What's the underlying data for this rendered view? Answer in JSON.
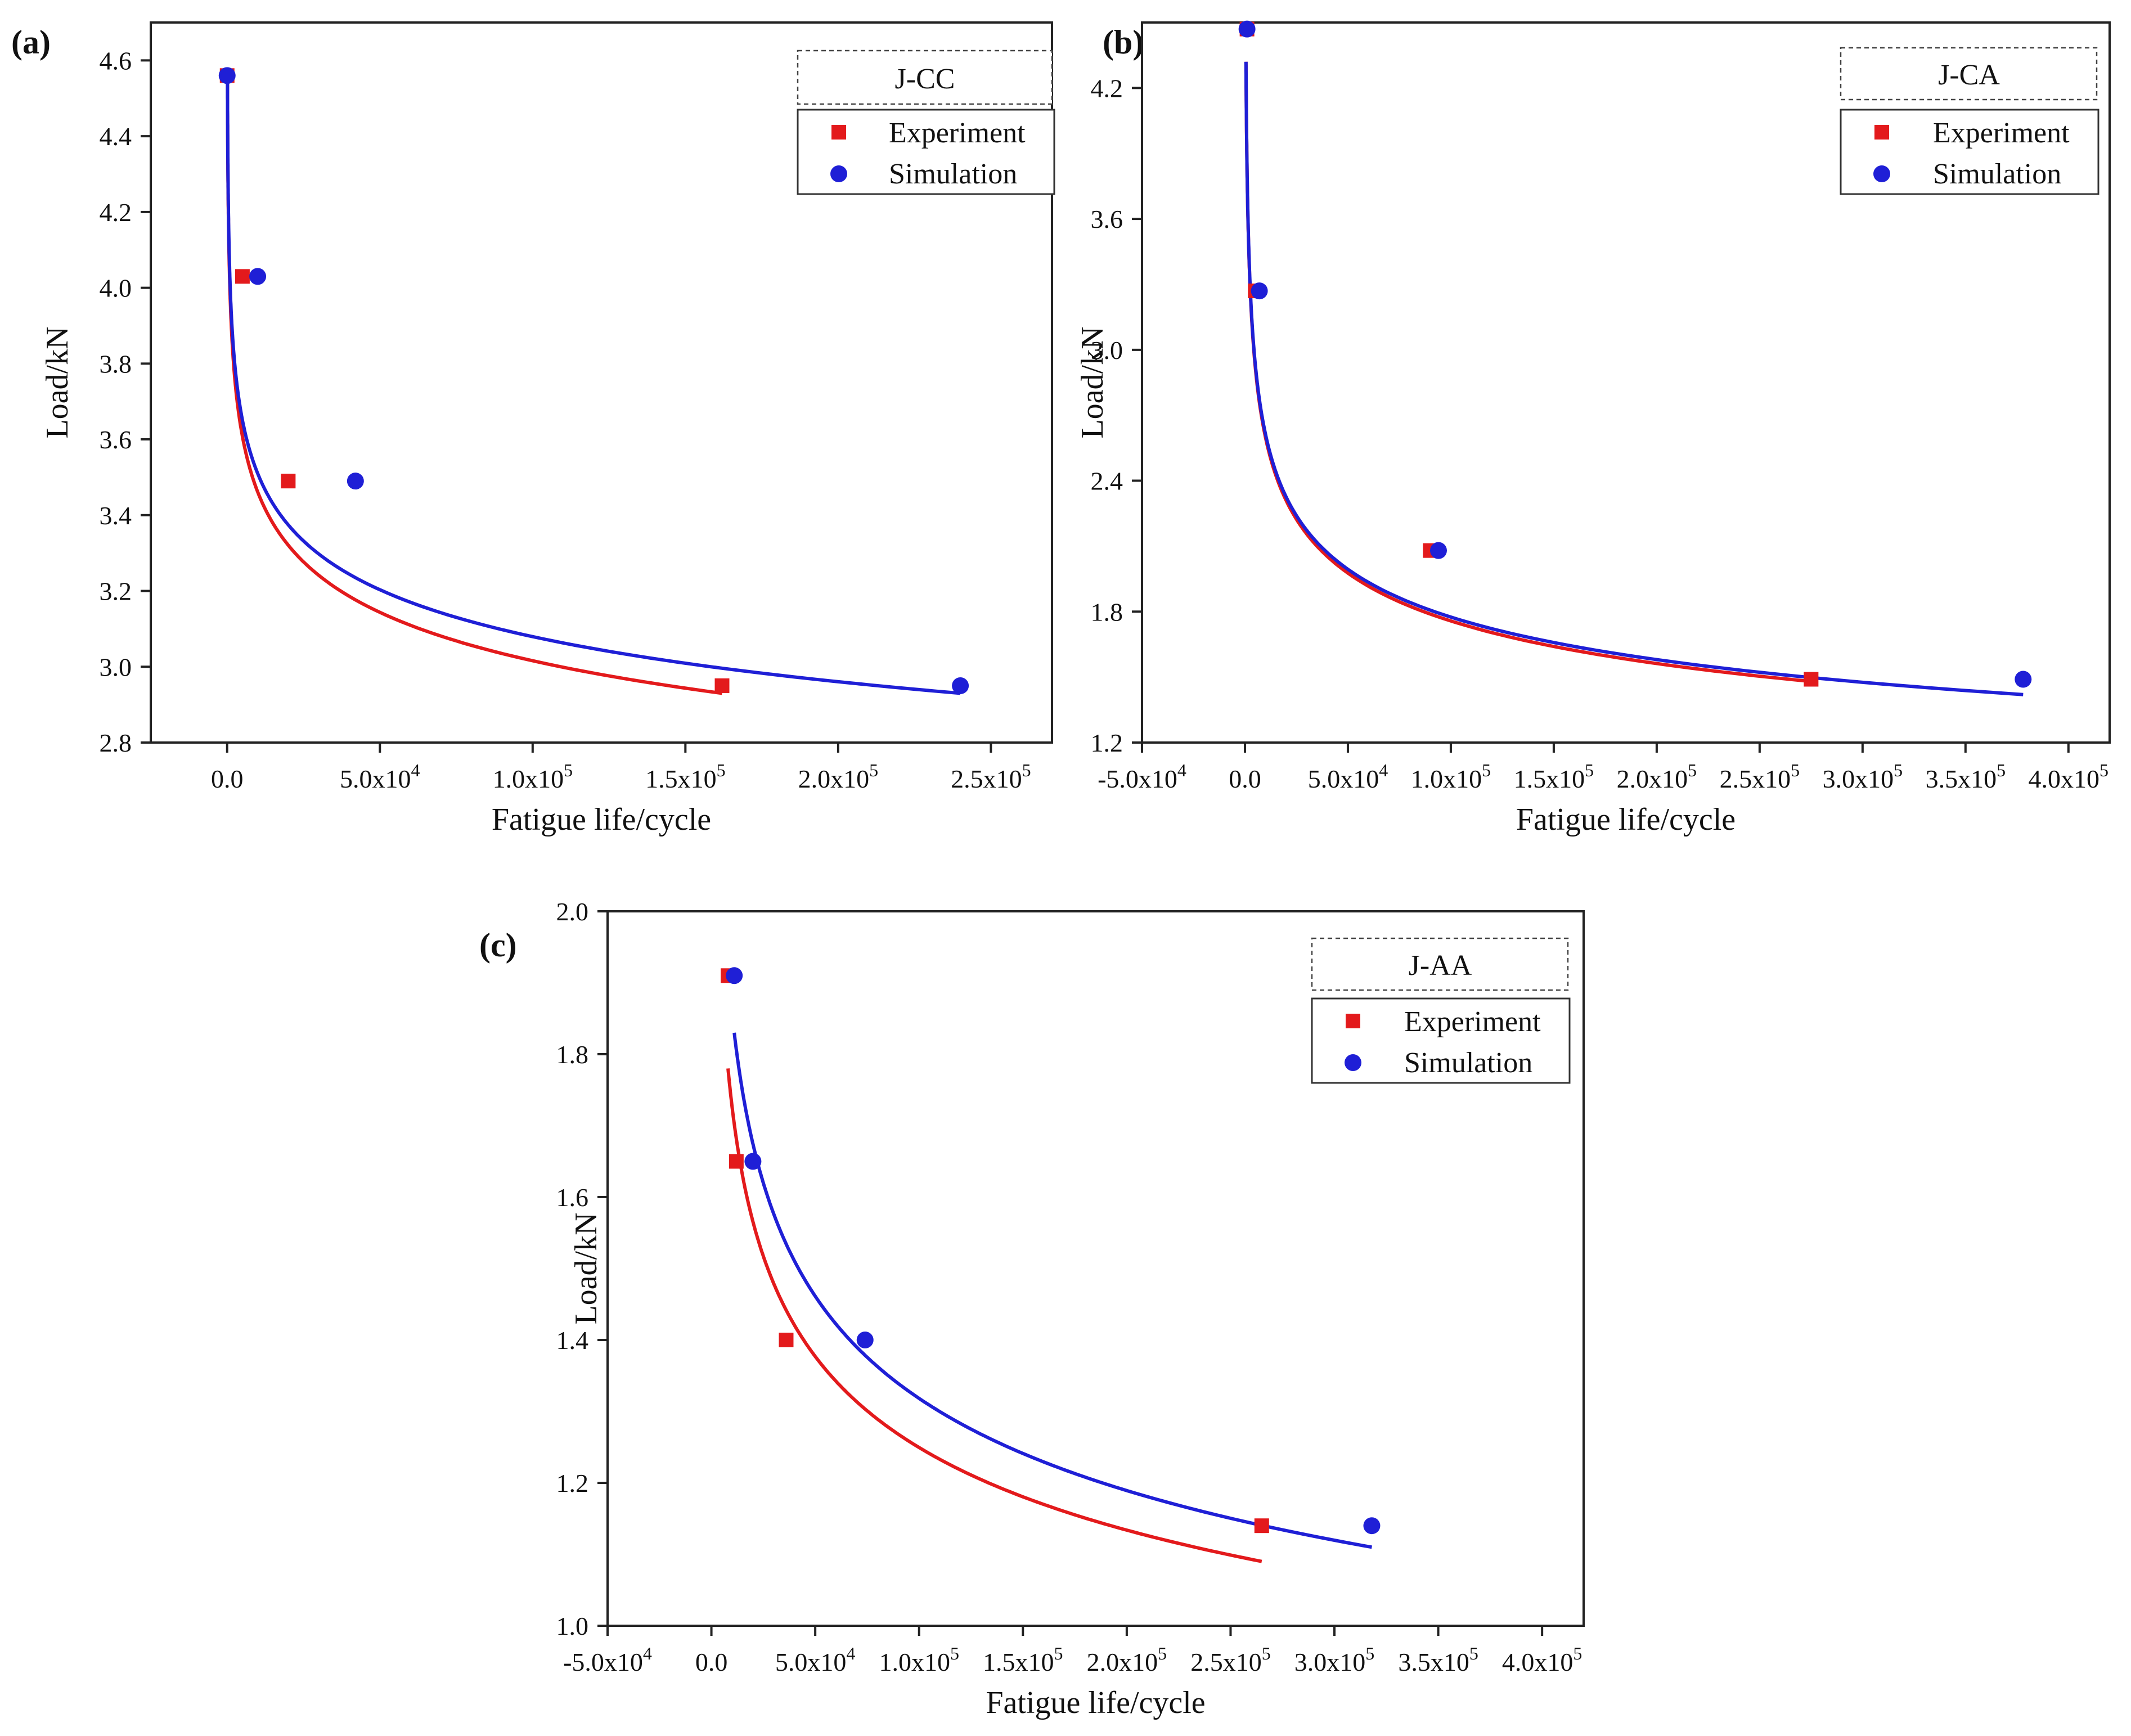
{
  "figure": {
    "panels": [
      {
        "id": "a",
        "tag": "(a)",
        "legend_title": "J-CC"
      },
      {
        "id": "b",
        "tag": "(b)",
        "legend_title": "J-CA"
      },
      {
        "id": "c",
        "tag": "(c)",
        "legend_title": "J-AA"
      }
    ],
    "legend_entries": [
      "Experiment",
      "Simulation"
    ]
  },
  "colors": {
    "experiment": "#e31a1c",
    "simulation": "#1f1fd6",
    "axis": "#222222"
  },
  "chart_data": [
    {
      "type": "scatter",
      "panel": "(a)",
      "title": "J-CC",
      "xlabel": "Fatigue life/cycle",
      "ylabel": "Load/kN",
      "xlim": [
        -25000,
        270000
      ],
      "ylim": [
        2.8,
        4.7
      ],
      "xticks": [
        0,
        50000,
        100000,
        150000,
        200000,
        250000
      ],
      "xtick_labels": [
        {
          "m": "0.0",
          "e": ""
        },
        {
          "m": "5.0x10",
          "e": "4"
        },
        {
          "m": "1.0x10",
          "e": "5"
        },
        {
          "m": "1.5x10",
          "e": "5"
        },
        {
          "m": "2.0x10",
          "e": "5"
        },
        {
          "m": "2.5x10",
          "e": "5"
        }
      ],
      "yticks": [
        2.8,
        3.0,
        3.2,
        3.4,
        3.6,
        3.8,
        4.0,
        4.2,
        4.4,
        4.6
      ],
      "ytick_labels": [
        "2.8",
        "3.0",
        "3.2",
        "3.4",
        "3.6",
        "3.8",
        "4.0",
        "4.2",
        "4.4",
        "4.6"
      ],
      "series": [
        {
          "name": "Experiment",
          "marker": "square",
          "x": [
            0,
            5000,
            20000,
            162000
          ],
          "y": [
            4.56,
            4.03,
            3.49,
            2.95
          ],
          "fit": {
            "x_from": 100,
            "x_to": 162000,
            "y_start": 4.56,
            "y_end": 2.93
          }
        },
        {
          "name": "Simulation",
          "marker": "circle",
          "x": [
            0,
            10000,
            42000,
            240000
          ],
          "y": [
            4.56,
            4.03,
            3.49,
            2.95
          ],
          "fit": {
            "x_from": 100,
            "x_to": 240000,
            "y_start": 4.56,
            "y_end": 2.93
          }
        }
      ]
    },
    {
      "type": "scatter",
      "panel": "(b)",
      "title": "J-CA",
      "xlabel": "Fatigue life/cycle",
      "ylabel": "Load/kN",
      "xlim": [
        -50000,
        420000
      ],
      "ylim": [
        1.2,
        4.5
      ],
      "xticks": [
        -50000,
        0,
        50000,
        100000,
        150000,
        200000,
        250000,
        300000,
        350000,
        400000
      ],
      "xtick_labels": [
        {
          "m": "-5.0x10",
          "e": "4"
        },
        {
          "m": "0.0",
          "e": ""
        },
        {
          "m": "5.0x10",
          "e": "4"
        },
        {
          "m": "1.0x10",
          "e": "5"
        },
        {
          "m": "1.5x10",
          "e": "5"
        },
        {
          "m": "2.0x10",
          "e": "5"
        },
        {
          "m": "2.5x10",
          "e": "5"
        },
        {
          "m": "3.0x10",
          "e": "5"
        },
        {
          "m": "3.5x10",
          "e": "5"
        },
        {
          "m": "4.0x10",
          "e": "5"
        }
      ],
      "yticks": [
        1.2,
        1.8,
        2.4,
        3.0,
        3.6,
        4.2
      ],
      "ytick_labels": [
        "1.2",
        "1.8",
        "2.4",
        "3.0",
        "3.6",
        "4.2"
      ],
      "series": [
        {
          "name": "Experiment",
          "marker": "square",
          "x": [
            1000,
            5000,
            90000,
            275000
          ],
          "y": [
            4.47,
            3.27,
            2.08,
            1.49
          ],
          "fit": {
            "x_from": 500,
            "x_to": 275000,
            "y_start": 4.32,
            "y_end": 1.48
          }
        },
        {
          "name": "Simulation",
          "marker": "circle",
          "x": [
            1000,
            7000,
            94000,
            378000
          ],
          "y": [
            4.47,
            3.27,
            2.08,
            1.49
          ],
          "fit": {
            "x_from": 500,
            "x_to": 378000,
            "y_start": 4.32,
            "y_end": 1.42
          }
        }
      ]
    },
    {
      "type": "scatter",
      "panel": "(c)",
      "title": "J-AA",
      "xlabel": "Fatigue life/cycle",
      "ylabel": "Load/kN",
      "xlim": [
        -50000,
        420000
      ],
      "ylim": [
        1.0,
        2.0
      ],
      "xticks": [
        -50000,
        0,
        50000,
        100000,
        150000,
        200000,
        250000,
        300000,
        350000,
        400000
      ],
      "xtick_labels": [
        {
          "m": "-5.0x10",
          "e": "4"
        },
        {
          "m": "0.0",
          "e": ""
        },
        {
          "m": "5.0x10",
          "e": "4"
        },
        {
          "m": "1.0x10",
          "e": "5"
        },
        {
          "m": "1.5x10",
          "e": "5"
        },
        {
          "m": "2.0x10",
          "e": "5"
        },
        {
          "m": "2.5x10",
          "e": "5"
        },
        {
          "m": "3.0x10",
          "e": "5"
        },
        {
          "m": "3.5x10",
          "e": "5"
        },
        {
          "m": "4.0x10",
          "e": "5"
        }
      ],
      "yticks": [
        1.0,
        1.2,
        1.4,
        1.6,
        1.8,
        2.0
      ],
      "ytick_labels": [
        "1.0",
        "1.2",
        "1.4",
        "1.6",
        "1.8",
        "2.0"
      ],
      "series": [
        {
          "name": "Experiment",
          "marker": "square",
          "x": [
            8000,
            12000,
            36000,
            265000
          ],
          "y": [
            1.91,
            1.65,
            1.4,
            1.14
          ],
          "fit": {
            "x_from": 8000,
            "x_to": 265000,
            "y_start": 1.78,
            "y_end": 1.09
          }
        },
        {
          "name": "Simulation",
          "marker": "circle",
          "x": [
            11000,
            20000,
            74000,
            318000
          ],
          "y": [
            1.91,
            1.65,
            1.4,
            1.14
          ],
          "fit": {
            "x_from": 11000,
            "x_to": 318000,
            "y_start": 1.83,
            "y_end": 1.11
          }
        }
      ]
    }
  ]
}
